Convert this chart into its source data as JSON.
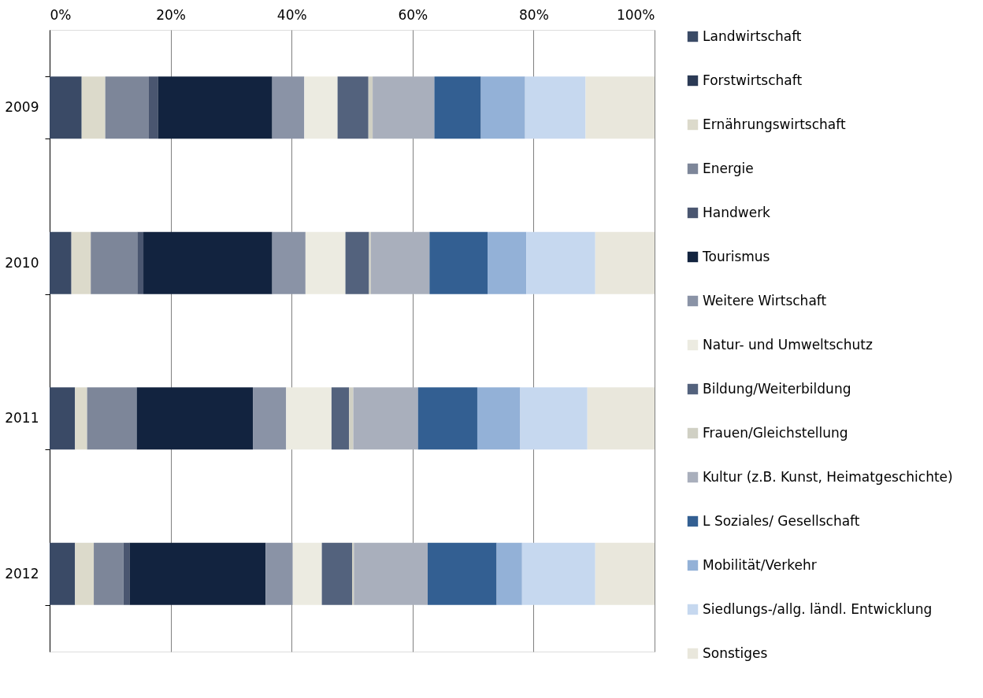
{
  "chart_data": {
    "type": "bar",
    "orientation": "horizontal",
    "stacked": true,
    "categories": [
      "2009",
      "2010",
      "2011",
      "2012"
    ],
    "series": [
      {
        "name": "Landwirtschaft",
        "color": "#3a4a66",
        "values": [
          5.3,
          3.6,
          4.2,
          4.2
        ]
      },
      {
        "name": "Forstwirtschaft",
        "color": "#2b3a55",
        "values": [
          0,
          0,
          0,
          0
        ]
      },
      {
        "name": "Ernährungswirtschaft",
        "color": "#dcdacb",
        "values": [
          3.9,
          3.2,
          2.0,
          3.1
        ]
      },
      {
        "name": "Energie",
        "color": "#7d8699",
        "values": [
          7.2,
          7.7,
          8.2,
          4.9
        ]
      },
      {
        "name": "Handwerk",
        "color": "#4a5670",
        "values": [
          1.5,
          1.0,
          0,
          1.0
        ]
      },
      {
        "name": "Tourismus",
        "color": "#12233f",
        "values": [
          18.9,
          21.3,
          19.2,
          22.5
        ]
      },
      {
        "name": "Weitere Wirtschaft",
        "color": "#8a93a6",
        "values": [
          5.3,
          5.5,
          5.5,
          4.5
        ]
      },
      {
        "name": "Natur- und Umweltschutz",
        "color": "#ecebe1",
        "values": [
          5.5,
          6.6,
          7.5,
          4.8
        ]
      },
      {
        "name": "Bildung/Weiterbildung",
        "color": "#53627d",
        "values": [
          5.1,
          3.9,
          2.9,
          5.0
        ]
      },
      {
        "name": "Frauen/Gleichstellung",
        "color": "#d0d0c4",
        "values": [
          0.7,
          0.3,
          0.7,
          0.3
        ]
      },
      {
        "name": "Kultur (z.B. Kunst, Heimatgeschichte)",
        "color": "#a9afbc",
        "values": [
          10.2,
          9.7,
          10.7,
          12.2
        ]
      },
      {
        "name": "L Soziales/ Gesellschaft",
        "color": "#335f92",
        "values": [
          7.7,
          9.6,
          9.8,
          11.4
        ]
      },
      {
        "name": "Mobilität/Verkehr",
        "color": "#93b1d7",
        "values": [
          7.3,
          6.4,
          7.1,
          4.2
        ]
      },
      {
        "name": "Siedlungs-/allg. ländl. Entwicklung",
        "color": "#c6d8ef",
        "values": [
          10.0,
          11.4,
          11.1,
          12.1
        ]
      },
      {
        "name": "Sonstiges",
        "color": "#e9e7dc",
        "values": [
          11.4,
          9.8,
          11.1,
          9.8
        ]
      }
    ],
    "xlim": [
      0,
      100
    ],
    "xticks": [
      {
        "value": 0,
        "label": "0%"
      },
      {
        "value": 20,
        "label": "20%"
      },
      {
        "value": 40,
        "label": "40%"
      },
      {
        "value": 60,
        "label": "60%"
      },
      {
        "value": 80,
        "label": "80%"
      },
      {
        "value": 100,
        "label": "100%"
      }
    ],
    "grid": "x",
    "legend": "right"
  }
}
